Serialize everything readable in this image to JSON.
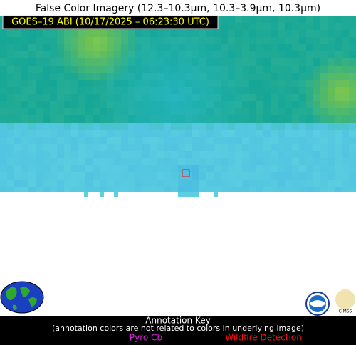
{
  "title": "False Color Imagery (12.3–10.3µm, 10.3–3.9µm, 10.3µm)",
  "image_label": "GOES–19 ABI (10/17/2025 – 06:23:30 UTC)",
  "annotation_key": {
    "title": "Annotation Key",
    "note": "(annotation colors are not related to colors in underlying image)",
    "items": [
      "Pyro Cb",
      "Wildfire Detection"
    ]
  },
  "logos": {
    "cimss": "CIMSS"
  }
}
